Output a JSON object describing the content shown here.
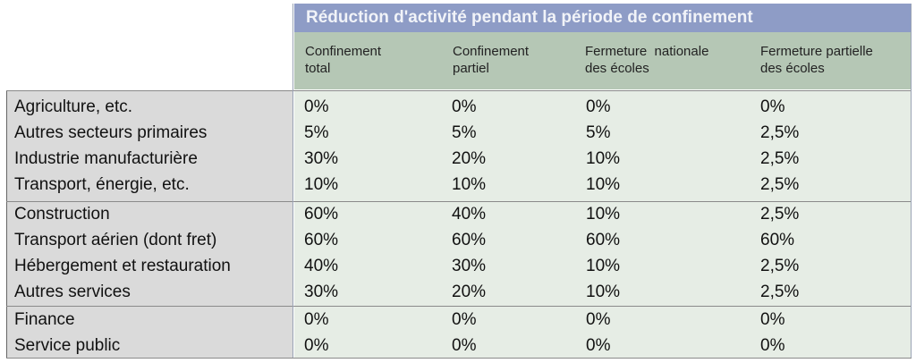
{
  "title": "Réduction d'activité pendant la période de confinement",
  "columns": [
    [
      "Confinement",
      "total"
    ],
    [
      "Confinement",
      "partiel"
    ],
    [
      "Fermeture  nationale",
      "des écoles"
    ],
    [
      "Fermeture partielle",
      "des écoles"
    ]
  ],
  "rows": [
    {
      "label": "Agriculture, etc.",
      "v": [
        "0%",
        "0%",
        "0%",
        "0%"
      ]
    },
    {
      "label": "Autres secteurs primaires",
      "v": [
        "5%",
        "5%",
        "5%",
        "2,5%"
      ]
    },
    {
      "label": "Industrie manufacturière",
      "v": [
        "30%",
        "20%",
        "10%",
        "2,5%"
      ]
    },
    {
      "label": "Transport, énergie, etc.",
      "v": [
        "10%",
        "10%",
        "10%",
        "2,5%"
      ]
    },
    {
      "label": "Construction",
      "v": [
        "60%",
        "40%",
        "10%",
        "2,5%"
      ]
    },
    {
      "label": "Transport aérien (dont fret)",
      "v": [
        "60%",
        "60%",
        "60%",
        "60%"
      ]
    },
    {
      "label": "Hébergement et restauration",
      "v": [
        "40%",
        "30%",
        "10%",
        "2,5%"
      ]
    },
    {
      "label": "Autres services",
      "v": [
        "30%",
        "20%",
        "10%",
        "2,5%"
      ]
    },
    {
      "label": "Finance",
      "v": [
        "0%",
        "0%",
        "0%",
        "0%"
      ]
    },
    {
      "label": "Service public",
      "v": [
        "0%",
        "0%",
        "0%",
        "0%"
      ]
    }
  ],
  "colors": {
    "title_bg": "#8e9cc6",
    "header_bg": "#b5c7b5",
    "rowhead_bg": "#dadada",
    "body_bg": "#e6ede5"
  }
}
